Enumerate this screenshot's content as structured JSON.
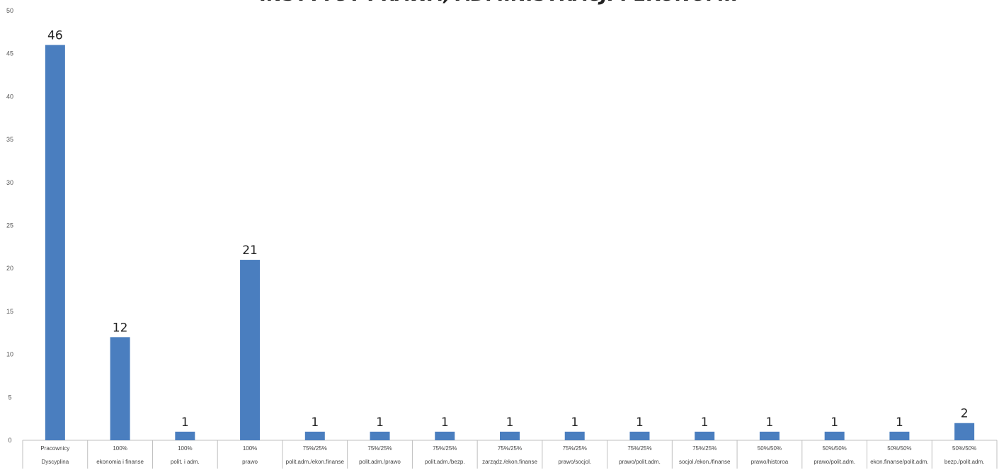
{
  "chart_data": {
    "type": "bar",
    "title": "INSTYTUT PRAWA, ADMINISTRACJI I EKONOMII",
    "ylim": [
      0,
      50
    ],
    "yticks": [
      0,
      5,
      10,
      15,
      20,
      25,
      30,
      35,
      40,
      45,
      50
    ],
    "grid": false,
    "bar_color": "#4a7ebf",
    "categories": [
      [
        "Pracownicy",
        "Dyscyplina"
      ],
      [
        "100%",
        "ekonomia i finanse"
      ],
      [
        "100%",
        "polit. i adm."
      ],
      [
        "100%",
        "prawo"
      ],
      [
        "75%/25%",
        "polit.adm./ekon.finanse"
      ],
      [
        "75%/25%",
        "polit.adm./prawo"
      ],
      [
        "75%/25%",
        "polit.adm./bezp."
      ],
      [
        "75%/25%",
        "zarządz./ekon.finanse"
      ],
      [
        "75%/25%",
        "prawo/socjol."
      ],
      [
        "75%/25%",
        "prawo/polit.adm."
      ],
      [
        "75%/25%",
        "socjol./ekon./finanse"
      ],
      [
        "50%/50%",
        "prawo/historoa"
      ],
      [
        "50%/50%",
        "prawo/polit.adm."
      ],
      [
        "50%/50%",
        "ekon.finanse/polit.adm."
      ],
      [
        "50%/50%",
        "bezp./polit.adm."
      ]
    ],
    "values": [
      46,
      12,
      1,
      21,
      1,
      1,
      1,
      1,
      1,
      1,
      1,
      1,
      1,
      1,
      2
    ]
  }
}
